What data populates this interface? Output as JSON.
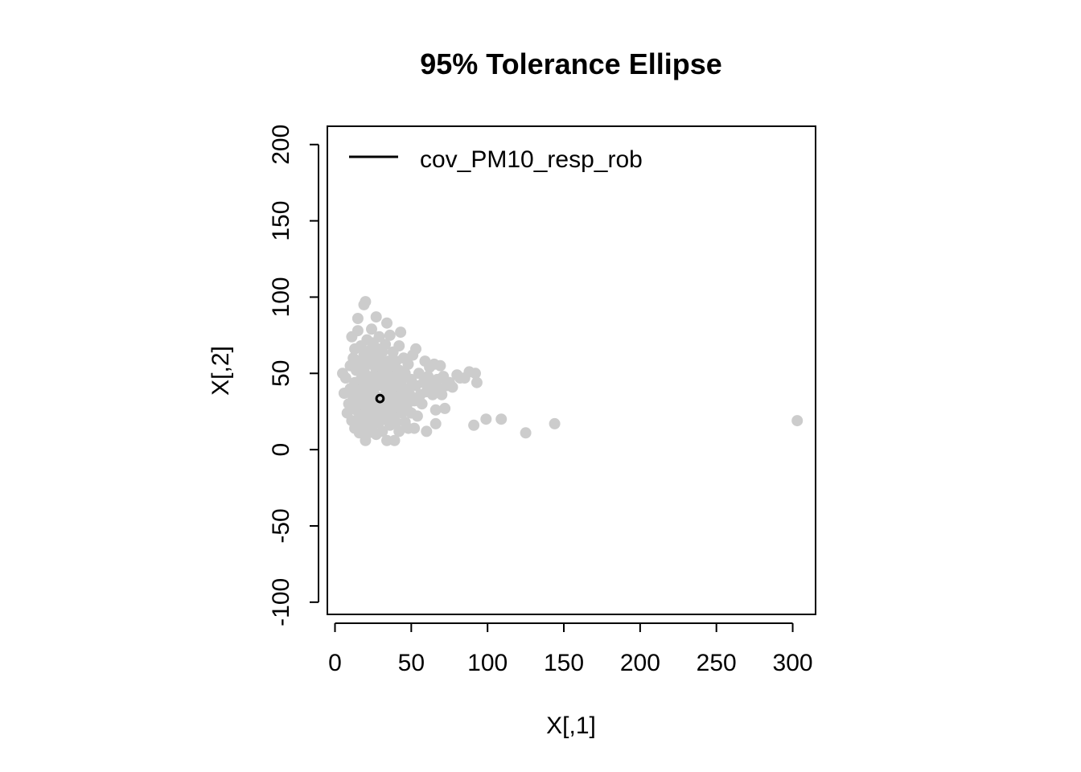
{
  "chart_data": {
    "type": "scatter",
    "title": "95% Tolerance Ellipse",
    "xlabel": "X[,1]",
    "ylabel": "X[,2]",
    "xlim": [
      -5,
      315
    ],
    "ylim": [
      -108,
      212
    ],
    "xticks": [
      0,
      50,
      100,
      150,
      200,
      250,
      300
    ],
    "yticks": [
      -100,
      -50,
      0,
      50,
      100,
      150,
      200
    ],
    "legend": {
      "position": "top-left",
      "label": "cov_PM10_resp_rob",
      "color": "#000000"
    },
    "point_color": "#cccccc",
    "ellipse": {
      "center": [
        29.5,
        33.5
      ],
      "semi_axes": [
        2.3,
        2.3
      ],
      "color": "#000000"
    },
    "points": [
      [
        5,
        50
      ],
      [
        6,
        37
      ],
      [
        7,
        47
      ],
      [
        8,
        24
      ],
      [
        9,
        30
      ],
      [
        10,
        40
      ],
      [
        10,
        55
      ],
      [
        11,
        19
      ],
      [
        11,
        74
      ],
      [
        12,
        34
      ],
      [
        12,
        60
      ],
      [
        13,
        14
      ],
      [
        13,
        44
      ],
      [
        13,
        66
      ],
      [
        14,
        26
      ],
      [
        14,
        52
      ],
      [
        15,
        86
      ],
      [
        15,
        78
      ],
      [
        15,
        20
      ],
      [
        15,
        39
      ],
      [
        16,
        58
      ],
      [
        16,
        11
      ],
      [
        16,
        30
      ],
      [
        17,
        46
      ],
      [
        17,
        68
      ],
      [
        18,
        24
      ],
      [
        18,
        36
      ],
      [
        18,
        15
      ],
      [
        19,
        52
      ],
      [
        19,
        95
      ],
      [
        19,
        62
      ],
      [
        20,
        97
      ],
      [
        20,
        28
      ],
      [
        20,
        42
      ],
      [
        20,
        6
      ],
      [
        21,
        18
      ],
      [
        21,
        58
      ],
      [
        21,
        72
      ],
      [
        22,
        34
      ],
      [
        22,
        48
      ],
      [
        22,
        11
      ],
      [
        23,
        65
      ],
      [
        23,
        24
      ],
      [
        23,
        40
      ],
      [
        24,
        56
      ],
      [
        24,
        30
      ],
      [
        24,
        79
      ],
      [
        25,
        16
      ],
      [
        25,
        46
      ],
      [
        25,
        70
      ],
      [
        26,
        36
      ],
      [
        26,
        22
      ],
      [
        26,
        60
      ],
      [
        27,
        87
      ],
      [
        27,
        52
      ],
      [
        27,
        10
      ],
      [
        28,
        28
      ],
      [
        28,
        42
      ],
      [
        28,
        66
      ],
      [
        29,
        18
      ],
      [
        29,
        48
      ],
      [
        29,
        74
      ],
      [
        30,
        34
      ],
      [
        30,
        58
      ],
      [
        30,
        24
      ],
      [
        31,
        44
      ],
      [
        31,
        12
      ],
      [
        31,
        64
      ],
      [
        32,
        30
      ],
      [
        32,
        52
      ],
      [
        33,
        20
      ],
      [
        33,
        40
      ],
      [
        33,
        69
      ],
      [
        34,
        83
      ],
      [
        34,
        6
      ],
      [
        34,
        48
      ],
      [
        35,
        26
      ],
      [
        35,
        58
      ],
      [
        35,
        36
      ],
      [
        36,
        16
      ],
      [
        36,
        44
      ],
      [
        36,
        75
      ],
      [
        37,
        30
      ],
      [
        37,
        54
      ],
      [
        38,
        22
      ],
      [
        38,
        40
      ],
      [
        38,
        64
      ],
      [
        39,
        6
      ],
      [
        39,
        34
      ],
      [
        39,
        48
      ],
      [
        40,
        18
      ],
      [
        40,
        58
      ],
      [
        41,
        28
      ],
      [
        41,
        42
      ],
      [
        42,
        12
      ],
      [
        42,
        52
      ],
      [
        42,
        68
      ],
      [
        43,
        36
      ],
      [
        43,
        77
      ],
      [
        44,
        24
      ],
      [
        44,
        46
      ],
      [
        45,
        60
      ],
      [
        45,
        32
      ],
      [
        46,
        18
      ],
      [
        46,
        50
      ],
      [
        47,
        40
      ],
      [
        47,
        28
      ],
      [
        48,
        56
      ],
      [
        48,
        14
      ],
      [
        49,
        36
      ],
      [
        50,
        46
      ],
      [
        50,
        24
      ],
      [
        51,
        62
      ],
      [
        52,
        32
      ],
      [
        52,
        14
      ],
      [
        53,
        66
      ],
      [
        53,
        42
      ],
      [
        54,
        22
      ],
      [
        55,
        50
      ],
      [
        56,
        36
      ],
      [
        57,
        30
      ],
      [
        58,
        44
      ],
      [
        59,
        58
      ],
      [
        60,
        12
      ],
      [
        60,
        38
      ],
      [
        61,
        48
      ],
      [
        62,
        54
      ],
      [
        63,
        42
      ],
      [
        64,
        36
      ],
      [
        65,
        56
      ],
      [
        66,
        17
      ],
      [
        66,
        26
      ],
      [
        67,
        46
      ],
      [
        68,
        40
      ],
      [
        69,
        55
      ],
      [
        70,
        36
      ],
      [
        71,
        48
      ],
      [
        72,
        27
      ],
      [
        73,
        42
      ],
      [
        75,
        44
      ],
      [
        77,
        41
      ],
      [
        80,
        49
      ],
      [
        82,
        47
      ],
      [
        85,
        47
      ],
      [
        88,
        51
      ],
      [
        91,
        16
      ],
      [
        92,
        50
      ],
      [
        93,
        44
      ],
      [
        99,
        20
      ],
      [
        109,
        20
      ],
      [
        125,
        11
      ],
      [
        144,
        17
      ],
      [
        303,
        19
      ]
    ]
  }
}
